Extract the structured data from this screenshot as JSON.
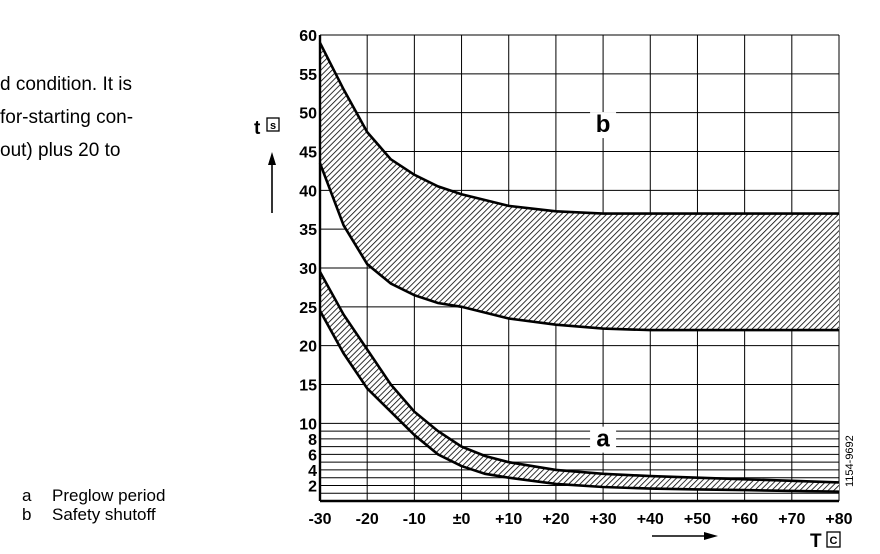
{
  "text_fragment": {
    "lines": [
      "d condition. It is",
      "for-starting con-",
      "out) plus 20 to"
    ]
  },
  "legend": {
    "items": [
      {
        "key": "a",
        "label": "Preglow period"
      },
      {
        "key": "b",
        "label": "Safety shutoff"
      }
    ]
  },
  "chart_data": {
    "type": "area",
    "xlabel": "T",
    "xunit": "C",
    "ylabel": "t",
    "yunit": "s",
    "xlim": [
      -30,
      80
    ],
    "ylim": [
      0,
      60
    ],
    "x_ticks": [
      -30,
      -20,
      -10,
      0,
      10,
      20,
      30,
      40,
      50,
      60,
      70,
      80
    ],
    "x_tick_labels": [
      "-30",
      "-20",
      "-10",
      "±0",
      "+10",
      "+20",
      "+30",
      "+40",
      "+50",
      "+60",
      "+70",
      "+80"
    ],
    "y_ticks": [
      2,
      4,
      6,
      8,
      10,
      15,
      20,
      25,
      30,
      35,
      40,
      45,
      50,
      55,
      60
    ],
    "y_tick_labels": [
      "2",
      "4",
      "6",
      "8",
      "10",
      "15",
      "20",
      "25",
      "30",
      "35",
      "40",
      "45",
      "50",
      "55",
      "60"
    ],
    "y_minor_lines": [
      1,
      3,
      5,
      7,
      9
    ],
    "grid": true,
    "bands": [
      {
        "label": "a",
        "label_pos": [
          30,
          7
        ],
        "x": [
          -30,
          -25,
          -20,
          -15,
          -10,
          -5,
          0,
          5,
          10,
          20,
          30,
          40,
          50,
          60,
          70,
          80
        ],
        "upper": [
          29.5,
          24,
          19.5,
          15,
          11.5,
          9,
          7,
          5.8,
          5,
          4,
          3.5,
          3.2,
          3,
          2.8,
          2.6,
          2.4
        ],
        "lower": [
          24.5,
          19,
          14.5,
          11.5,
          8.5,
          6,
          4.5,
          3.5,
          3,
          2.2,
          1.8,
          1.6,
          1.5,
          1.4,
          1.3,
          1.2
        ]
      },
      {
        "label": "b",
        "label_pos": [
          30,
          47.5
        ],
        "x": [
          -30,
          -25,
          -20,
          -15,
          -10,
          -5,
          0,
          10,
          20,
          30,
          40,
          50,
          60,
          70,
          80
        ],
        "upper": [
          59,
          53,
          47.5,
          44,
          42,
          40.5,
          39.5,
          38,
          37.3,
          37,
          37,
          37,
          37,
          37,
          37
        ],
        "lower": [
          43.5,
          35.5,
          30.5,
          28,
          26.5,
          25.5,
          25,
          23.5,
          22.7,
          22.2,
          22,
          22,
          22,
          22,
          22
        ]
      }
    ]
  },
  "figure_code": "1154-9692"
}
